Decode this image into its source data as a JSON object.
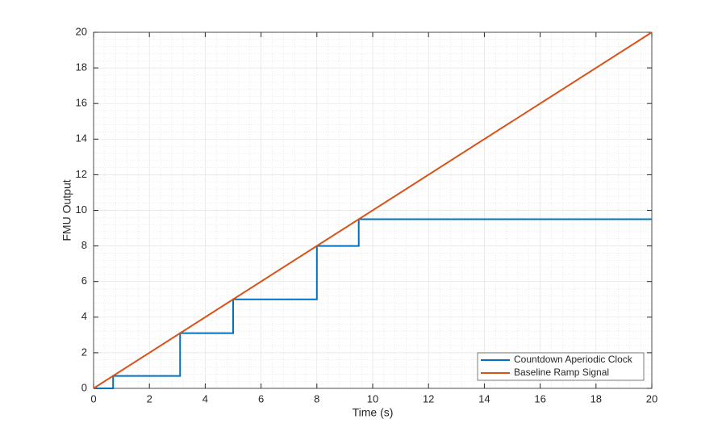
{
  "chart_data": {
    "type": "line",
    "x_label": "Time (s)",
    "y_label": "FMU Output",
    "series": [
      {
        "name": "Countdown Aperiodic Clock",
        "color": "#0072BD",
        "x": [
          0,
          0.7,
          0.7,
          3.1,
          3.1,
          5,
          5,
          8,
          8,
          9.5,
          9.5,
          20
        ],
        "values": [
          0,
          0,
          0.7,
          0.7,
          3.1,
          3.1,
          5,
          5,
          8,
          8,
          9.5,
          9.5
        ]
      },
      {
        "name": "Baseline Ramp Signal",
        "color": "#D95319",
        "x": [
          0,
          20
        ],
        "values": [
          0,
          20
        ]
      }
    ],
    "xlim": [
      0,
      20
    ],
    "xticks": [
      0,
      2,
      4,
      6,
      8,
      10,
      12,
      14,
      16,
      18,
      20
    ],
    "ylim": [
      0,
      20
    ],
    "yticks": [
      0,
      2,
      4,
      6,
      8,
      10,
      12,
      14,
      16,
      18,
      20
    ],
    "grid": true,
    "minor_grid": true,
    "legend_position": "lower-right"
  }
}
